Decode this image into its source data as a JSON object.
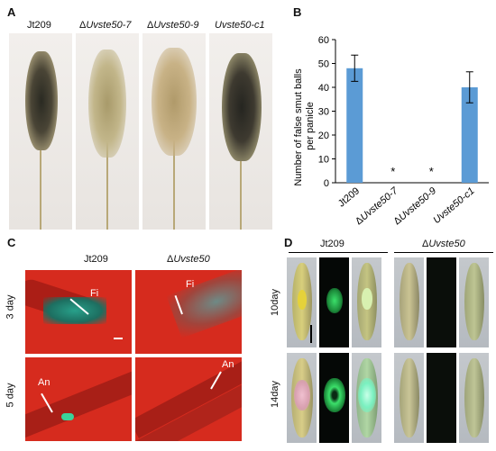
{
  "panel_a": {
    "letter": "A",
    "labels": [
      {
        "prefix": "",
        "italic": "Jt209",
        "plain": true
      },
      {
        "prefix": "Δ",
        "italic": "Uvste50-7",
        "plain": false
      },
      {
        "prefix": "Δ",
        "italic": "Uvste50-9",
        "plain": false
      },
      {
        "prefix": "",
        "italic": "Uvste50-c1",
        "plain": false
      }
    ]
  },
  "panel_b": {
    "letter": "B",
    "chart_data": {
      "type": "bar",
      "categories": [
        "Jt209",
        "ΔUvste50-7",
        "ΔUvste50-9",
        "Uvste50-c1"
      ],
      "values": [
        48,
        0,
        0,
        40
      ],
      "errors": [
        5.5,
        0,
        0,
        6.5
      ],
      "significance": [
        "",
        "*",
        "*",
        ""
      ],
      "ylabel_line1": "Number of false smut balls",
      "ylabel_line2": "per panicle",
      "ylim": [
        0,
        60
      ],
      "yticks": [
        "0",
        "10",
        "20",
        "30",
        "40",
        "50",
        "60"
      ],
      "bar_color": "#5b9bd5"
    }
  },
  "panel_c": {
    "letter": "C",
    "col1": "Jt209",
    "col2_prefix": "Δ",
    "col2_italic": "Uvste50",
    "row1": "3 day",
    "row2": "5 day",
    "arrow_fi": "Fi",
    "arrow_an": "An"
  },
  "panel_d": {
    "letter": "D",
    "group1": "Jt209",
    "group2_prefix": "Δ",
    "group2_italic": "Uvste50",
    "row1": "10day",
    "row2": "14day"
  }
}
